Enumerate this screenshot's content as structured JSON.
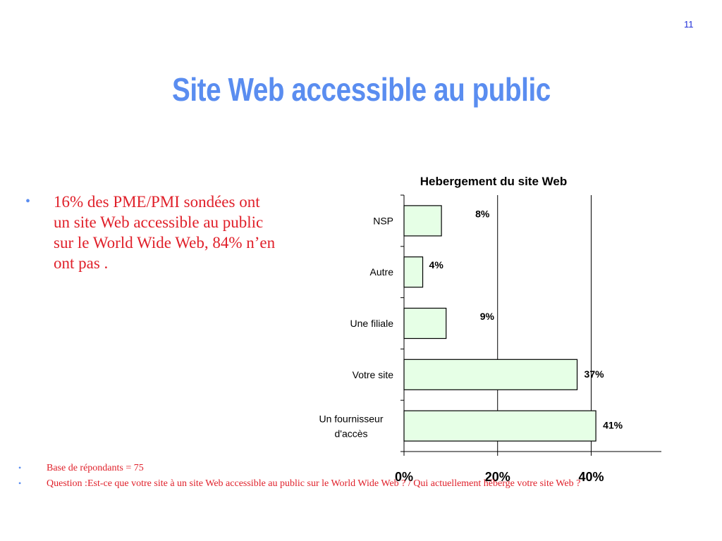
{
  "slide": {
    "page_number": "11",
    "title": "Site Web accessible au public",
    "main_bullet": "16% des PME/PMI sondées ont un site Web accessible au public sur le World Wide Web, 84% n’en ont pas .",
    "notes": [
      "Base de répondants = 75",
      "Question :Est-ce que votre site à un site Web accessible au public sur le World Wide Web ? / Qui actuellement héberge votre site Web ?"
    ]
  },
  "colors": {
    "title": "#5a8df0",
    "body_text": "#e0202a",
    "bullet": "#5a8df0",
    "bar_fill": "#e6ffe6",
    "bar_stroke": "#000000"
  },
  "chart_data": {
    "type": "bar",
    "orientation": "horizontal",
    "title": "Hebergement du site Web",
    "categories": [
      "NSP",
      "Autre",
      "Une filiale",
      "Votre site",
      "Un fournisseur d'accès"
    ],
    "values": [
      8,
      4,
      9,
      37,
      41
    ],
    "data_labels": [
      "8%",
      "4%",
      "9%",
      "37%",
      "41%"
    ],
    "xlim": [
      0,
      55
    ],
    "x_ticks": [
      0,
      20,
      40
    ],
    "x_tick_labels": [
      "0%",
      "20%",
      "40%"
    ],
    "gridlines_at": [
      20,
      40
    ],
    "legend": "none"
  }
}
